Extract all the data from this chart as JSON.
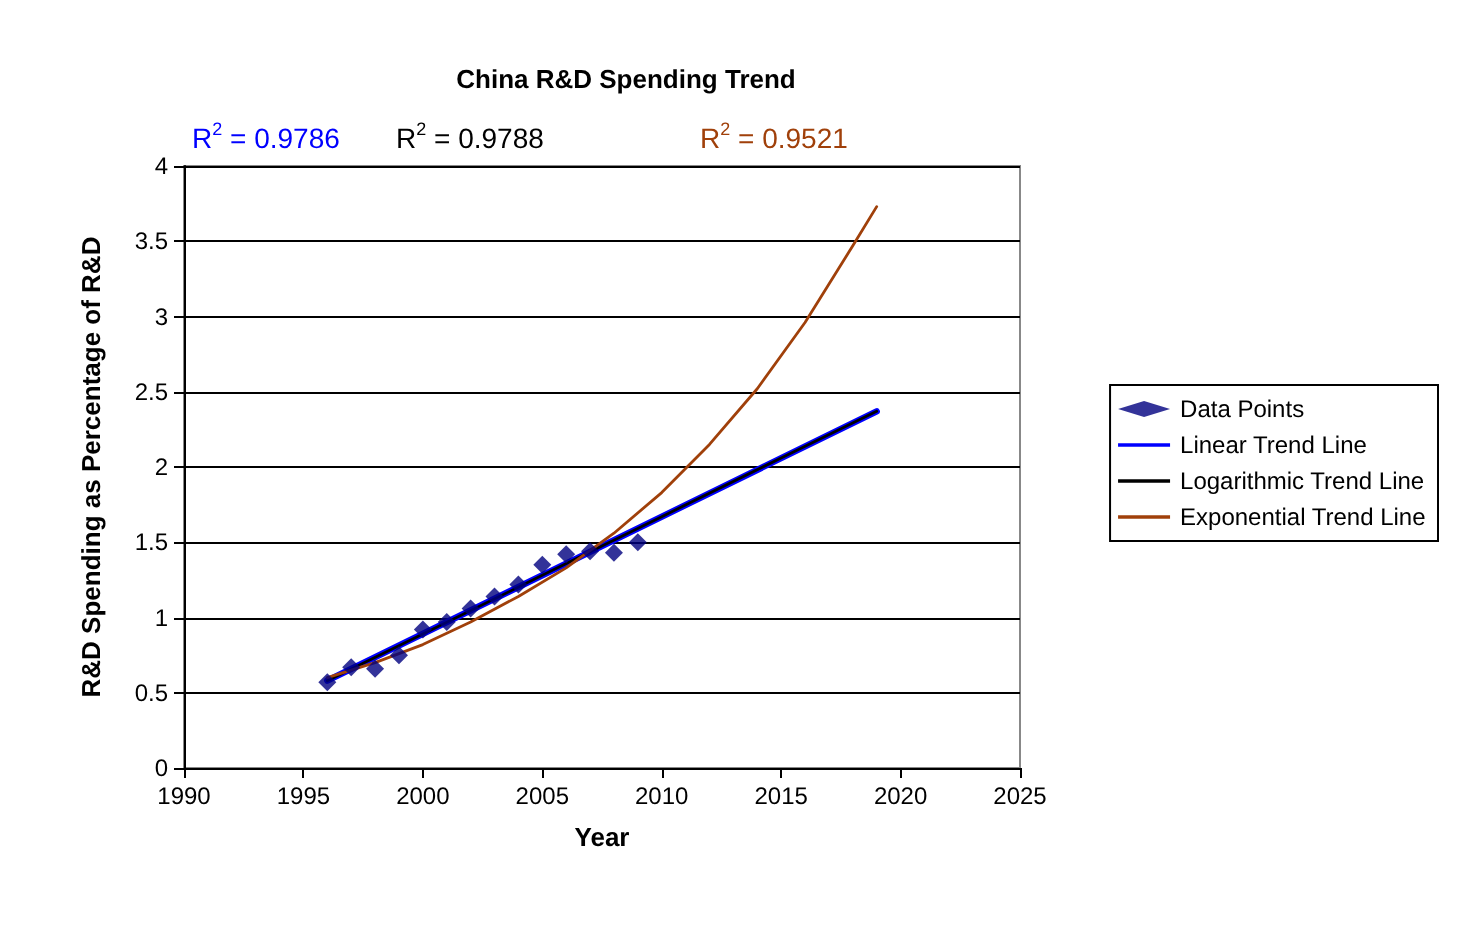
{
  "chart_data": {
    "type": "scatter",
    "title": "China R&D Spending Trend",
    "xlabel": "Year",
    "ylabel": "R&D Spending as Percentage of R&D",
    "xlim": [
      1990,
      2025
    ],
    "xticks": [
      1990,
      1995,
      2000,
      2005,
      2010,
      2015,
      2020,
      2025
    ],
    "ylim": [
      0,
      4
    ],
    "yticks": [
      0,
      0.5,
      1,
      1.5,
      2,
      2.5,
      3,
      3.5,
      4
    ],
    "grid": "y",
    "legend": "right",
    "annotations": [
      "R$^{2}$ = 0.9786",
      "R$^{2}$ = 0.9788",
      "R$^{2}$ = 0.9521"
    ],
    "series": [
      {
        "name": "Data Points",
        "marker": "diamond",
        "color": "#000080",
        "x": [
          1996,
          1997,
          1998,
          1999,
          2000,
          2001,
          2002,
          2003,
          2004,
          2005,
          2006,
          2007,
          2008,
          2009
        ],
        "values": [
          0.57,
          0.67,
          0.66,
          0.75,
          0.92,
          0.97,
          1.06,
          1.14,
          1.22,
          1.35,
          1.42,
          1.44,
          1.43,
          1.5
        ]
      },
      {
        "name": "Linear Trend Line",
        "type": "line",
        "marker": "none",
        "color": "#0000ff",
        "x": [
          1996,
          2019
        ],
        "values": [
          0.58,
          2.37
        ]
      },
      {
        "name": "Logarithmic Trend Line",
        "type": "line",
        "marker": "none",
        "color": "#000000",
        "x": [
          1996,
          2000,
          2005,
          2010,
          2015,
          2019
        ],
        "values": [
          0.58,
          0.89,
          1.28,
          1.67,
          2.06,
          2.37
        ]
      },
      {
        "name": "Exponential Trend Line",
        "type": "line",
        "marker": "none",
        "color": "#a0400a",
        "x": [
          1996,
          1998,
          2000,
          2002,
          2004,
          2006,
          2008,
          2010,
          2012,
          2014,
          2016,
          2018,
          2019
        ],
        "values": [
          0.6,
          0.7,
          0.82,
          0.97,
          1.14,
          1.33,
          1.56,
          1.83,
          2.15,
          2.52,
          2.96,
          3.47,
          3.73
        ]
      }
    ]
  }
}
